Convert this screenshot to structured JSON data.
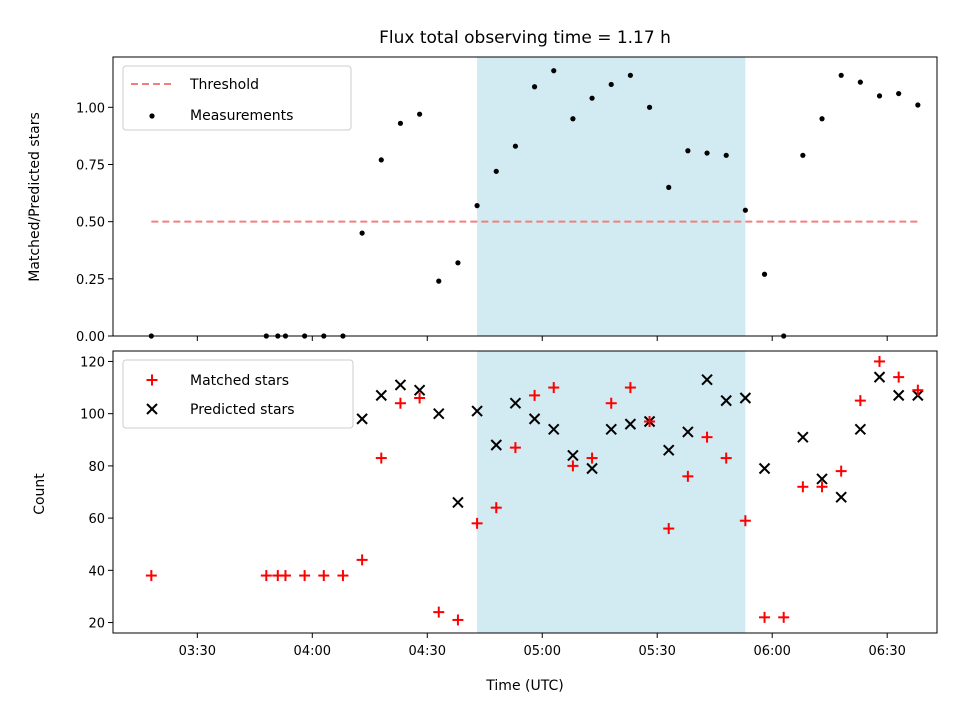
{
  "chart_data": [
    {
      "type": "scatter",
      "title": "Flux total observing time = 1.17 h",
      "xlabel": "",
      "ylabel": "Matched/Predicted stars",
      "ylim": [
        0,
        1.22
      ],
      "yticks": [
        "0.00",
        "0.25",
        "0.50",
        "0.75",
        "1.00"
      ],
      "x_range": [
        "03:08",
        "06:43"
      ],
      "shaded_interval": [
        "04:43",
        "05:53"
      ],
      "shade_color": "#add8e6",
      "legend_position": "top-left",
      "threshold": {
        "name": "Threshold",
        "value": 0.5,
        "x": [
          "03:18",
          "06:38"
        ],
        "color": "#f08080"
      },
      "series": [
        {
          "name": "Measurements",
          "color": "#000000",
          "points": [
            [
              "03:18",
              0.0
            ],
            [
              "03:48",
              0.0
            ],
            [
              "03:51",
              0.0
            ],
            [
              "03:53",
              0.0
            ],
            [
              "03:58",
              0.0
            ],
            [
              "04:03",
              0.0
            ],
            [
              "04:08",
              0.0
            ],
            [
              "04:13",
              0.45
            ],
            [
              "04:18",
              0.77
            ],
            [
              "04:23",
              0.93
            ],
            [
              "04:28",
              0.97
            ],
            [
              "04:33",
              0.24
            ],
            [
              "04:38",
              0.32
            ],
            [
              "04:43",
              0.57
            ],
            [
              "04:48",
              0.72
            ],
            [
              "04:53",
              0.83
            ],
            [
              "04:58",
              1.09
            ],
            [
              "05:03",
              1.16
            ],
            [
              "05:08",
              0.95
            ],
            [
              "05:13",
              1.04
            ],
            [
              "05:18",
              1.1
            ],
            [
              "05:23",
              1.14
            ],
            [
              "05:28",
              1.0
            ],
            [
              "05:33",
              0.65
            ],
            [
              "05:38",
              0.81
            ],
            [
              "05:43",
              0.8
            ],
            [
              "05:48",
              0.79
            ],
            [
              "05:53",
              0.55
            ],
            [
              "05:58",
              0.27
            ],
            [
              "06:03",
              0.0
            ],
            [
              "06:08",
              0.79
            ],
            [
              "06:13",
              0.95
            ],
            [
              "06:18",
              1.14
            ],
            [
              "06:23",
              1.11
            ],
            [
              "06:28",
              1.05
            ],
            [
              "06:33",
              1.06
            ],
            [
              "06:38",
              1.01
            ]
          ]
        }
      ]
    },
    {
      "type": "scatter",
      "xlabel": "Time (UTC)",
      "ylabel": "Count",
      "ylim": [
        16,
        124
      ],
      "yticks": [
        20,
        40,
        60,
        80,
        100,
        120
      ],
      "xticks": [
        "03:30",
        "04:00",
        "04:30",
        "05:00",
        "05:30",
        "06:00",
        "06:30"
      ],
      "x_range": [
        "03:08",
        "06:43"
      ],
      "shaded_interval": [
        "04:43",
        "05:53"
      ],
      "legend_position": "top-left",
      "series": [
        {
          "name": "Matched stars",
          "marker": "plus",
          "color": "#ff0000",
          "points": [
            [
              "03:18",
              38
            ],
            [
              "03:48",
              38
            ],
            [
              "03:51",
              38
            ],
            [
              "03:53",
              38
            ],
            [
              "03:58",
              38
            ],
            [
              "04:03",
              38
            ],
            [
              "04:08",
              38
            ],
            [
              "04:13",
              44
            ],
            [
              "04:18",
              83
            ],
            [
              "04:23",
              104
            ],
            [
              "04:28",
              106
            ],
            [
              "04:33",
              24
            ],
            [
              "04:38",
              21
            ],
            [
              "04:43",
              58
            ],
            [
              "04:48",
              64
            ],
            [
              "04:53",
              87
            ],
            [
              "04:58",
              107
            ],
            [
              "05:03",
              110
            ],
            [
              "05:08",
              80
            ],
            [
              "05:13",
              83
            ],
            [
              "05:18",
              104
            ],
            [
              "05:23",
              110
            ],
            [
              "05:28",
              97
            ],
            [
              "05:33",
              56
            ],
            [
              "05:38",
              76
            ],
            [
              "05:43",
              91
            ],
            [
              "05:48",
              83
            ],
            [
              "05:53",
              59
            ],
            [
              "05:58",
              22
            ],
            [
              "06:03",
              22
            ],
            [
              "06:08",
              72
            ],
            [
              "06:13",
              72
            ],
            [
              "06:18",
              78
            ],
            [
              "06:23",
              105
            ],
            [
              "06:28",
              120
            ],
            [
              "06:33",
              114
            ],
            [
              "06:38",
              109
            ]
          ]
        },
        {
          "name": "Predicted stars",
          "marker": "x",
          "color": "#000000",
          "points": [
            [
              "04:13",
              98
            ],
            [
              "04:18",
              107
            ],
            [
              "04:23",
              111
            ],
            [
              "04:28",
              109
            ],
            [
              "04:33",
              100
            ],
            [
              "04:38",
              66
            ],
            [
              "04:43",
              101
            ],
            [
              "04:48",
              88
            ],
            [
              "04:53",
              104
            ],
            [
              "04:58",
              98
            ],
            [
              "05:03",
              94
            ],
            [
              "05:08",
              84
            ],
            [
              "05:13",
              79
            ],
            [
              "05:18",
              94
            ],
            [
              "05:23",
              96
            ],
            [
              "05:28",
              97
            ],
            [
              "05:33",
              86
            ],
            [
              "05:38",
              93
            ],
            [
              "05:43",
              113
            ],
            [
              "05:48",
              105
            ],
            [
              "05:53",
              106
            ],
            [
              "05:58",
              79
            ],
            [
              "06:08",
              91
            ],
            [
              "06:13",
              75
            ],
            [
              "06:18",
              68
            ],
            [
              "06:23",
              94
            ],
            [
              "06:28",
              114
            ],
            [
              "06:33",
              107
            ],
            [
              "06:38",
              107
            ]
          ]
        }
      ]
    }
  ]
}
